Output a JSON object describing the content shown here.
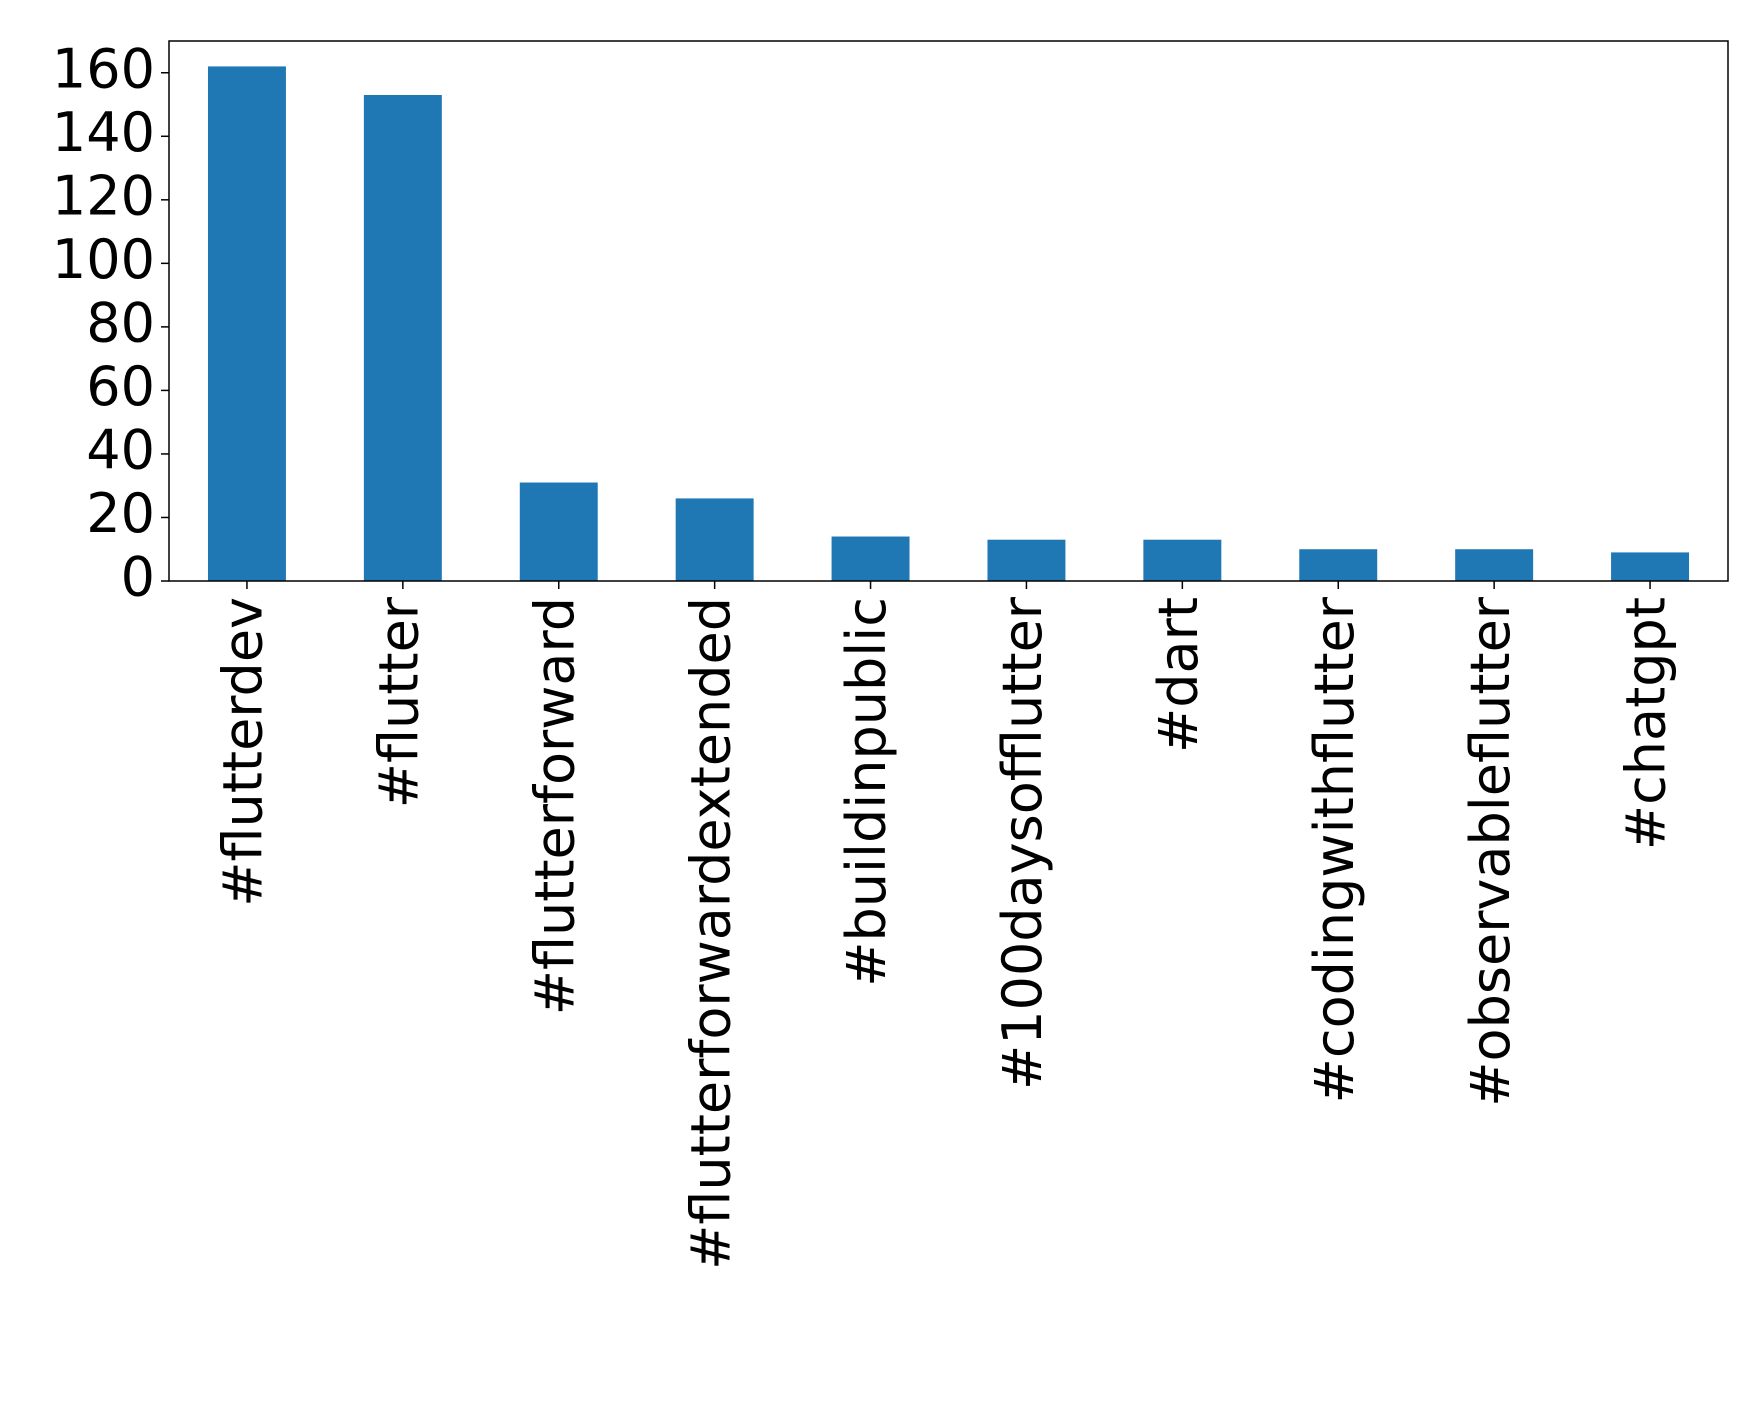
{
  "chart_data": {
    "type": "bar",
    "categories": [
      "#flutterdev",
      "#flutter",
      "#flutterforward",
      "#flutterforwardextended",
      "#buildinpublic",
      "#100daysofflutter",
      "#dart",
      "#codingwithflutter",
      "#observableflutter",
      "#chatgpt"
    ],
    "values": [
      162,
      153,
      31,
      26,
      14,
      13,
      13,
      10,
      10,
      9
    ],
    "color": "#1f77b4",
    "ylim": [
      0,
      170
    ],
    "yticks": [
      0,
      20,
      40,
      60,
      80,
      100,
      120,
      140,
      160
    ],
    "grid": false
  }
}
